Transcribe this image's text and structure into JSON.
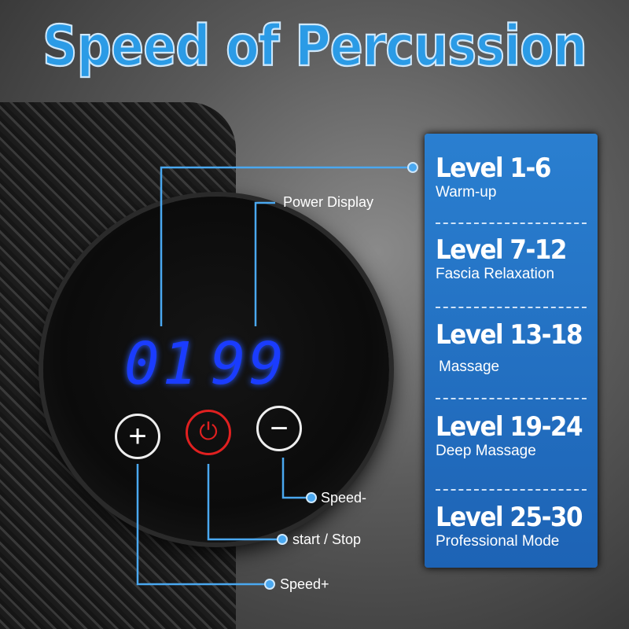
{
  "title": "Speed of Percussion",
  "display": {
    "left_digits": "01",
    "right_digits": "99"
  },
  "buttons": {
    "plus_icon": "plus-icon",
    "power_icon": "power-icon",
    "minus_icon": "minus-icon",
    "plus": "+",
    "power": "⏻",
    "minus": "−"
  },
  "callouts": {
    "power_display": "Power Display",
    "speed_minus": "Speed-",
    "start_stop": "start / Stop",
    "speed_plus": "Speed+"
  },
  "levels": [
    {
      "label": "Level 1-6",
      "desc": "Warm-up"
    },
    {
      "label": "Level 7-12",
      "desc": "Fascia Relaxation"
    },
    {
      "label": "Level 13-18",
      "desc": "Massage"
    },
    {
      "label": "Level 19-24",
      "desc": "Deep Massage"
    },
    {
      "label": "Level 25-30",
      "desc": "Professional Mode"
    }
  ],
  "colors": {
    "accent": "#2b9be6",
    "panel": "#1f6fc0",
    "display": "#1a3cff",
    "power": "#e02020"
  }
}
